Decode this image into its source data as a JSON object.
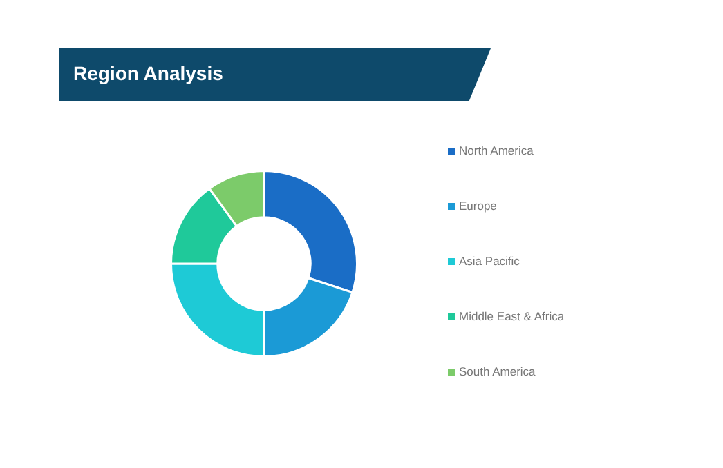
{
  "chart_data": {
    "type": "donut",
    "title": "Region Analysis",
    "categories": [
      "North America",
      "Europe",
      "Asia Pacific",
      "Middle East & Africa",
      "South America"
    ],
    "values": [
      30,
      20,
      25,
      15,
      10
    ],
    "colors": [
      "#1a6dc6",
      "#1b9ad6",
      "#1ecad6",
      "#1fc99a",
      "#7ccb6a"
    ],
    "legend": "right"
  }
}
